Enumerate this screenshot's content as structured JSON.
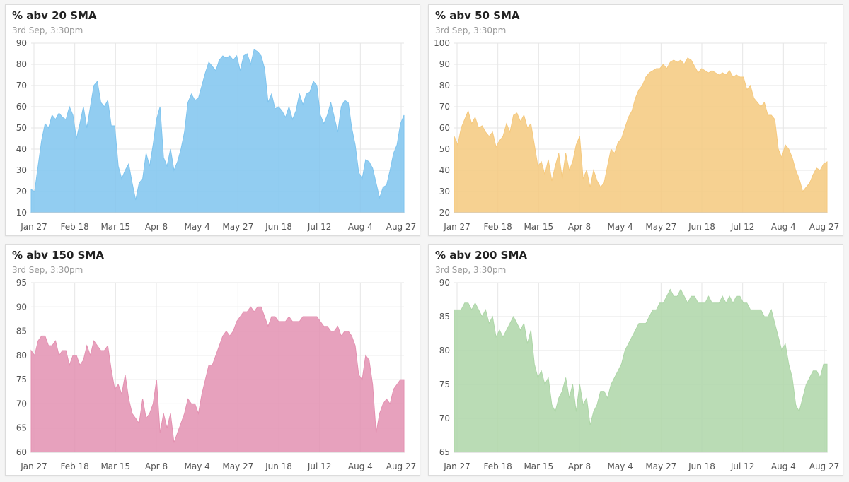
{
  "chart_data": [
    {
      "type": "area",
      "title": "% abv 20 SMA",
      "subtitle": "3rd Sep, 3:30pm",
      "color": "#7fc4ee",
      "ylim": [
        10,
        90
      ],
      "yticks": [
        10,
        20,
        30,
        40,
        50,
        60,
        70,
        80,
        90
      ],
      "xticks": [
        "Jan 27",
        "Feb 18",
        "Mar 15",
        "Apr 8",
        "May 4",
        "May 27",
        "Jun 18",
        "Jul 12",
        "Aug 4",
        "Aug 27"
      ],
      "grid": true,
      "values": [
        21,
        20,
        32,
        44,
        52,
        50,
        56,
        54,
        57,
        55,
        54,
        60,
        56,
        45,
        52,
        60,
        50,
        60,
        70,
        72,
        62,
        60,
        63,
        51,
        51,
        32,
        26,
        30,
        33,
        24,
        16,
        24,
        26,
        38,
        32,
        42,
        54,
        60,
        36,
        32,
        40,
        30,
        34,
        40,
        48,
        62,
        66,
        63,
        64,
        70,
        76,
        81,
        79,
        77,
        82,
        84,
        83,
        84,
        82,
        84,
        77,
        84,
        85,
        80,
        87,
        86,
        84,
        78,
        62,
        66,
        59,
        60,
        58,
        55,
        60,
        54,
        58,
        66,
        61,
        66,
        67,
        72,
        70,
        56,
        52,
        56,
        62,
        55,
        48,
        60,
        63,
        62,
        50,
        42,
        29,
        26,
        35,
        34,
        31,
        24,
        17,
        22,
        23,
        30,
        38,
        42,
        52,
        56
      ]
    },
    {
      "type": "area",
      "title": "% abv 50 SMA",
      "subtitle": "3rd Sep, 3:30pm",
      "color": "#f5c97e",
      "ylim": [
        20,
        100
      ],
      "yticks": [
        20,
        30,
        40,
        50,
        60,
        70,
        80,
        90,
        100
      ],
      "xticks": [
        "Jan 27",
        "Feb 18",
        "Mar 15",
        "Apr 8",
        "May 4",
        "May 27",
        "Jun 18",
        "Jul 12",
        "Aug 4",
        "Aug 27"
      ],
      "grid": true,
      "values": [
        56,
        52,
        60,
        64,
        68,
        62,
        65,
        60,
        61,
        58,
        56,
        58,
        51,
        54,
        56,
        62,
        58,
        66,
        67,
        63,
        66,
        60,
        62,
        52,
        42,
        44,
        38,
        45,
        35,
        42,
        48,
        36,
        48,
        40,
        44,
        52,
        56,
        36,
        40,
        32,
        40,
        35,
        32,
        34,
        42,
        50,
        48,
        53,
        55,
        60,
        65,
        68,
        74,
        78,
        80,
        84,
        86,
        87,
        88,
        88,
        90,
        88,
        91,
        92,
        91,
        92,
        90,
        93,
        92,
        89,
        86,
        88,
        87,
        86,
        87,
        86,
        85,
        86,
        85,
        87,
        84,
        85,
        84,
        84,
        78,
        80,
        74,
        72,
        70,
        72,
        66,
        66,
        64,
        50,
        46,
        52,
        50,
        46,
        40,
        36,
        30,
        32,
        34,
        38,
        41,
        40,
        43,
        44
      ]
    },
    {
      "type": "area",
      "title": "% abv 150 SMA",
      "subtitle": "3rd Sep, 3:30pm",
      "color": "#e391b1",
      "ylim": [
        60,
        95
      ],
      "yticks": [
        60,
        65,
        70,
        75,
        80,
        85,
        90,
        95
      ],
      "xticks": [
        "Jan 27",
        "Feb 18",
        "Mar 15",
        "Apr 8",
        "May 4",
        "May 27",
        "Jun 18",
        "Jul 12",
        "Aug 4",
        "Aug 27"
      ],
      "grid": true,
      "values": [
        81,
        80,
        83,
        84,
        84,
        82,
        82,
        83,
        80,
        81,
        81,
        78,
        80,
        80,
        78,
        79,
        82,
        80,
        83,
        82,
        81,
        81,
        82,
        77,
        73,
        74,
        72,
        76,
        71,
        68,
        67,
        66,
        71,
        67,
        68,
        70,
        75,
        64,
        68,
        65,
        68,
        62,
        64,
        66,
        68,
        71,
        70,
        70,
        68,
        72,
        75,
        78,
        78,
        80,
        82,
        84,
        85,
        84,
        85,
        87,
        88,
        89,
        89,
        90,
        89,
        90,
        90,
        88,
        86,
        88,
        88,
        87,
        87,
        87,
        88,
        87,
        87,
        87,
        88,
        88,
        88,
        88,
        88,
        87,
        86,
        86,
        85,
        85,
        86,
        84,
        85,
        85,
        84,
        82,
        76,
        75,
        80,
        79,
        74,
        64,
        68,
        70,
        71,
        70,
        73,
        74,
        75,
        75
      ]
    },
    {
      "type": "area",
      "title": "% abv 200 SMA",
      "subtitle": "3rd Sep, 3:30pm",
      "color": "#aed6a8",
      "ylim": [
        65,
        90
      ],
      "yticks": [
        65,
        70,
        75,
        80,
        85,
        90
      ],
      "xticks": [
        "Jan 27",
        "Feb 18",
        "Mar 15",
        "Apr 8",
        "May 4",
        "May 27",
        "Jun 18",
        "Jul 12",
        "Aug 4",
        "Aug 27"
      ],
      "grid": true,
      "values": [
        86,
        86,
        86,
        87,
        87,
        86,
        87,
        86,
        85,
        86,
        84,
        85,
        82,
        83,
        82,
        83,
        84,
        85,
        84,
        83,
        84,
        81,
        83,
        78,
        76,
        77,
        75,
        76,
        72,
        71,
        73,
        74,
        76,
        73,
        75,
        71,
        75,
        72,
        73,
        69,
        71,
        72,
        74,
        74,
        73,
        75,
        76,
        77,
        78,
        80,
        81,
        82,
        83,
        84,
        84,
        84,
        85,
        86,
        86,
        87,
        87,
        88,
        89,
        88,
        88,
        89,
        88,
        87,
        88,
        88,
        87,
        87,
        87,
        88,
        87,
        87,
        87,
        88,
        87,
        88,
        87,
        88,
        88,
        87,
        87,
        86,
        86,
        86,
        86,
        85,
        85,
        86,
        84,
        82,
        80,
        81,
        78,
        76,
        72,
        71,
        73,
        75,
        76,
        77,
        77,
        76,
        78,
        78
      ]
    }
  ]
}
